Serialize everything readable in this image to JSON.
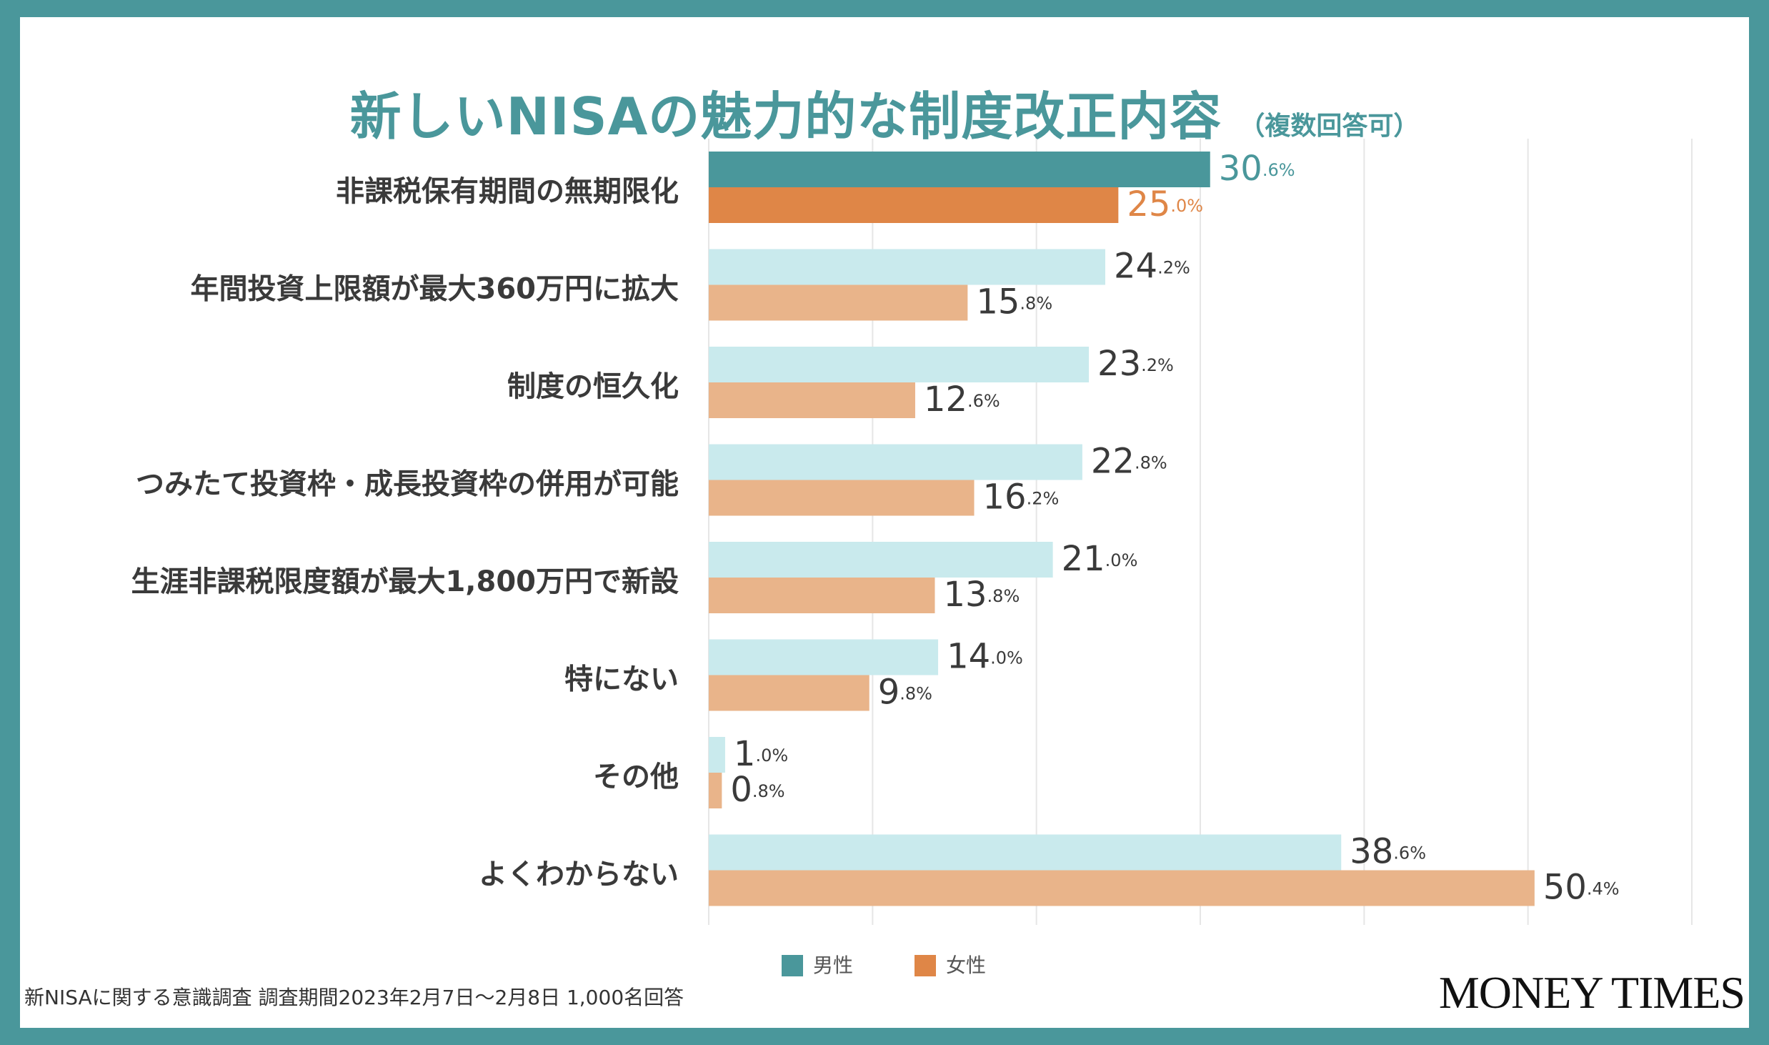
{
  "colors": {
    "frame": "#4a979b",
    "male_highlight": "#4a979b",
    "female_highlight": "#df8647",
    "male": "#c9eaed",
    "female": "#e9b48a",
    "grid": "#e6e6e6"
  },
  "chart_data": {
    "type": "bar",
    "orientation": "horizontal",
    "title": "新しいNISAの魅力的な制度改正内容",
    "subtitle": "（複数回答可）",
    "categories": [
      "非課税保有期間の無期限化",
      "年間投資上限額が最大360万円に拡大",
      "制度の恒久化",
      "つみたて投資枠・成長投資枠の併用が可能",
      "生涯非課税限度額が最大1,800万円で新設",
      "特にない",
      "その他",
      "よくわからない"
    ],
    "series": [
      {
        "name": "男性",
        "values": [
          30.6,
          24.2,
          23.2,
          22.8,
          21.0,
          14.0,
          1.0,
          38.6
        ]
      },
      {
        "name": "女性",
        "values": [
          25.0,
          15.8,
          12.6,
          16.2,
          13.8,
          9.8,
          0.8,
          50.4
        ]
      }
    ],
    "xlim": [
      0,
      60
    ],
    "grid": true,
    "unit": "%",
    "legend_position": "bottom-center"
  },
  "footer": {
    "note": "新NISAに関する意識調査 調査期間2023年2月7日〜2月8日 1,000名回答",
    "brand": "MONEY TIMES"
  }
}
